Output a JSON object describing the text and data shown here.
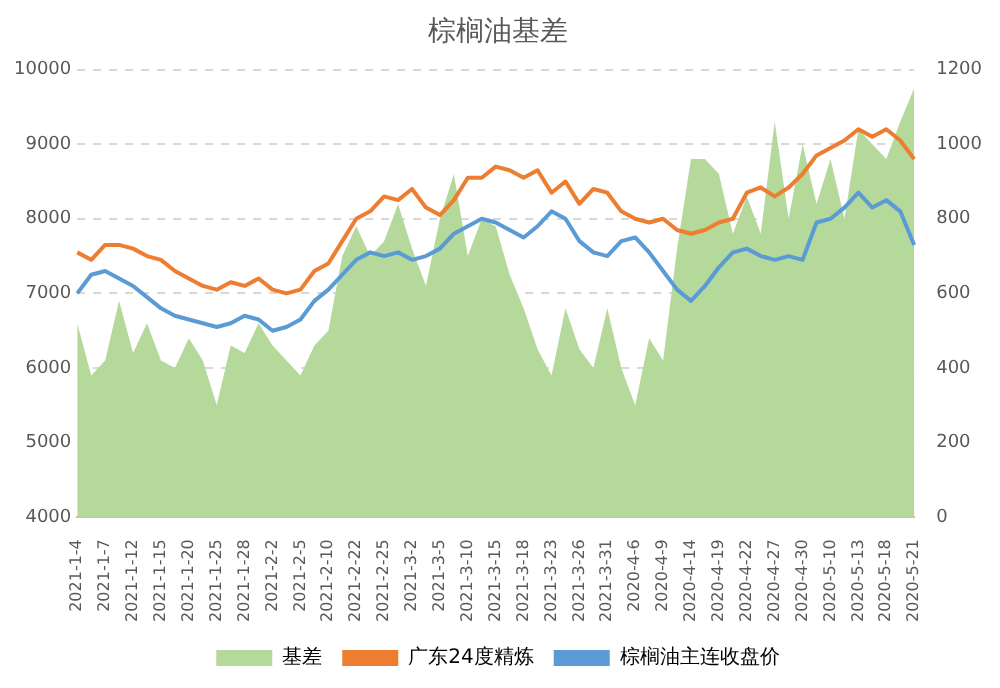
{
  "chart_data": {
    "type": "line",
    "title": "棕榈油基差",
    "categories": [
      "2021-1-4",
      null,
      "2021-1-7",
      null,
      "2021-1-12",
      null,
      "2021-1-15",
      null,
      "2021-1-20",
      null,
      "2021-1-25",
      null,
      "2021-1-28",
      null,
      "2021-2-2",
      null,
      "2021-2-5",
      null,
      "2021-2-10",
      null,
      "2021-2-22",
      null,
      "2021-2-25",
      null,
      "2021-3-2",
      null,
      "2021-3-5",
      null,
      "2021-3-10",
      null,
      "2021-3-15",
      null,
      "2021-3-18",
      null,
      "2021-3-23",
      null,
      "2021-3-26",
      null,
      "2021-3-31",
      null,
      "2020-4-6",
      null,
      "2020-4-9",
      null,
      "2020-4-14",
      null,
      "2020-4-19",
      null,
      "2020-4-22",
      null,
      "2020-4-27",
      null,
      "2020-4-30",
      null,
      "2020-5-10",
      null,
      "2020-5-13",
      null,
      "2020-5-18",
      null,
      "2020-5-21"
    ],
    "series": [
      {
        "name": "基差",
        "type": "area",
        "axis": "y2",
        "color": "#b4d99a",
        "values": [
          520,
          380,
          420,
          580,
          440,
          520,
          420,
          400,
          480,
          420,
          300,
          460,
          440,
          520,
          460,
          420,
          380,
          460,
          500,
          700,
          780,
          700,
          740,
          840,
          720,
          620,
          800,
          920,
          700,
          800,
          780,
          650,
          560,
          450,
          380,
          560,
          450,
          400,
          560,
          400,
          300,
          480,
          420,
          720,
          960,
          960,
          920,
          760,
          860,
          760,
          1060,
          800,
          1000,
          840,
          960,
          800,
          1040,
          1000,
          960,
          1060,
          1150
        ]
      },
      {
        "name": "广东24度精炼",
        "type": "line",
        "color": "#ed7d31",
        "values": [
          7550,
          7450,
          7650,
          7650,
          7600,
          7500,
          7450,
          7300,
          7200,
          7100,
          7050,
          7150,
          7100,
          7200,
          7050,
          7000,
          7050,
          7300,
          7400,
          7700,
          8000,
          8100,
          8300,
          8250,
          8400,
          8150,
          8050,
          8250,
          8550,
          8550,
          8700,
          8650,
          8550,
          8650,
          8350,
          8500,
          8200,
          8400,
          8350,
          8100,
          8000,
          7950,
          8000,
          7850,
          7800,
          7850,
          7950,
          8000,
          8350,
          8420,
          8300,
          8420,
          8600,
          8850,
          8950,
          9050,
          9200,
          9100,
          9200,
          9050,
          8800
        ]
      },
      {
        "name": "棕榈油主连收盘价",
        "type": "line",
        "color": "#5b9bd5",
        "values": [
          7000,
          7250,
          7300,
          7200,
          7100,
          6950,
          6800,
          6700,
          6650,
          6600,
          6550,
          6600,
          6700,
          6650,
          6500,
          6550,
          6650,
          6900,
          7050,
          7250,
          7450,
          7550,
          7500,
          7550,
          7450,
          7500,
          7600,
          7800,
          7900,
          8000,
          7950,
          7850,
          7750,
          7900,
          8100,
          8000,
          7700,
          7550,
          7500,
          7700,
          7750,
          7550,
          7300,
          7050,
          6900,
          7100,
          7350,
          7550,
          7600,
          7500,
          7450,
          7500,
          7450,
          7950,
          8000,
          8150,
          8350,
          8150,
          8250,
          8100,
          7650
        ]
      }
    ],
    "ylim": [
      4000,
      10000
    ],
    "yticks": [
      4000,
      5000,
      6000,
      7000,
      8000,
      9000,
      10000
    ],
    "y2lim": [
      0,
      1200
    ],
    "y2ticks": [
      0,
      200,
      400,
      600,
      800,
      1000,
      1200
    ],
    "grid": "y",
    "legend": "bottom",
    "marker": "none"
  }
}
